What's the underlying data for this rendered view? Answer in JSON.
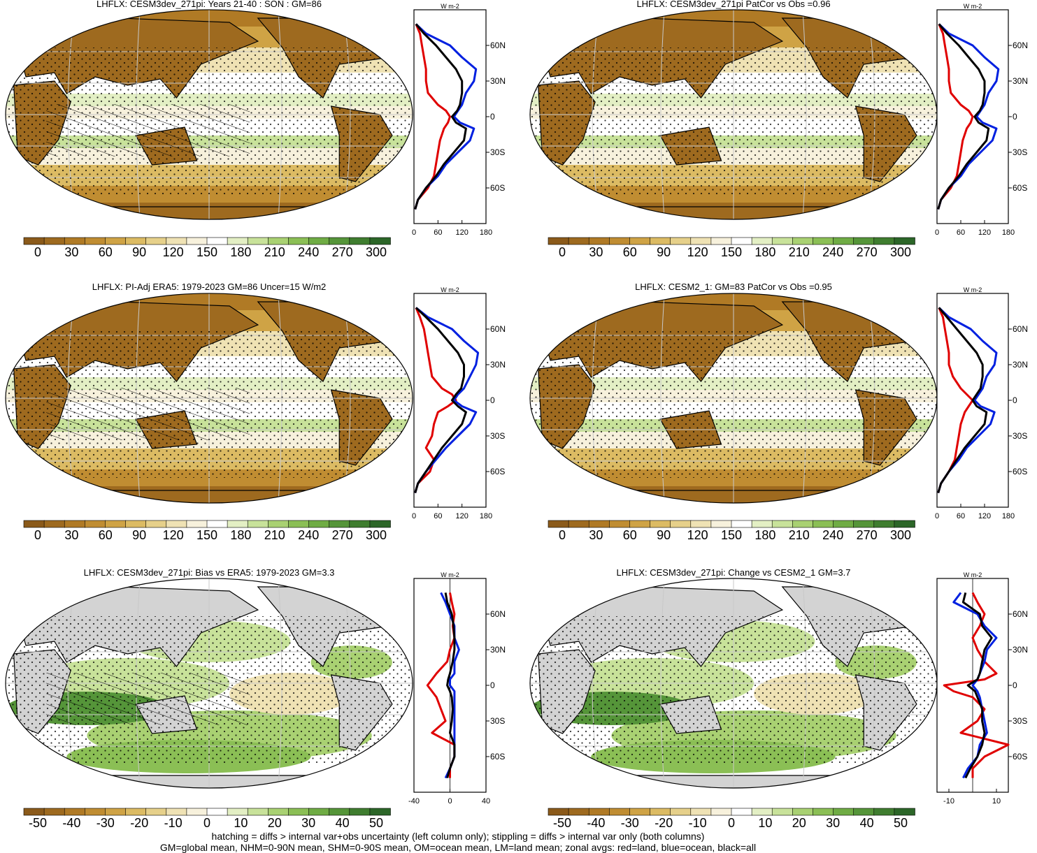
{
  "chart_data": [
    {
      "type": "heatmap",
      "title": "LHFLX: CESM3dev_271pi: Years 21-40 : SON : GM=86",
      "colorbar_ticks": [
        "0",
        "30",
        "60",
        "90",
        "120",
        "150",
        "180",
        "210",
        "240",
        "270",
        "300"
      ],
      "overlay": "hatching + stippling"
    },
    {
      "type": "line",
      "xlabel": "",
      "units": "W m-2",
      "xticks": [
        "0",
        "60",
        "120",
        "180"
      ],
      "xlim": [
        0,
        180
      ],
      "yticks": [
        "60N",
        "30N",
        "0",
        "30S",
        "60S"
      ],
      "ylim": [
        -90,
        90
      ],
      "series": [
        {
          "color": "#e00000",
          "lat": [
            78,
            70,
            60,
            50,
            40,
            30,
            20,
            10,
            5,
            0,
            -5,
            -10,
            -20,
            -30,
            -40,
            -50,
            -60,
            -70,
            -78
          ],
          "values": [
            5,
            15,
            20,
            25,
            30,
            30,
            35,
            60,
            80,
            90,
            85,
            75,
            65,
            60,
            55,
            50,
            35,
            10,
            3
          ]
        },
        {
          "color": "#0020e0",
          "lat": [
            78,
            70,
            60,
            50,
            40,
            30,
            20,
            10,
            5,
            0,
            -5,
            -10,
            -20,
            -30,
            -40,
            -50,
            -60,
            -70,
            -78
          ],
          "values": [
            5,
            30,
            90,
            120,
            155,
            150,
            130,
            120,
            110,
            100,
            115,
            150,
            140,
            110,
            80,
            60,
            30,
            10,
            3
          ]
        },
        {
          "color": "#000000",
          "lat": [
            78,
            70,
            60,
            50,
            40,
            30,
            20,
            10,
            5,
            0,
            -5,
            -10,
            -20,
            -30,
            -40,
            -50,
            -60,
            -70,
            -78
          ],
          "values": [
            5,
            25,
            55,
            80,
            105,
            120,
            120,
            115,
            108,
            95,
            105,
            130,
            125,
            100,
            75,
            55,
            30,
            10,
            3
          ]
        }
      ]
    },
    {
      "type": "heatmap",
      "title": "LHFLX: CESM3dev_271pi PatCor vs Obs =0.96",
      "colorbar_ticks": [
        "0",
        "30",
        "60",
        "90",
        "120",
        "150",
        "180",
        "210",
        "240",
        "270",
        "300"
      ],
      "overlay": "stippling"
    },
    {
      "type": "line",
      "xlabel": "",
      "units": "W m-2",
      "xticks": [
        "0",
        "60",
        "120",
        "180"
      ],
      "xlim": [
        0,
        180
      ],
      "yticks": [
        "60N",
        "30N",
        "0",
        "30S",
        "60S"
      ],
      "ylim": [
        -90,
        90
      ],
      "series": [
        {
          "color": "#e00000",
          "lat": [
            78,
            70,
            60,
            50,
            40,
            30,
            20,
            10,
            5,
            0,
            -5,
            -10,
            -20,
            -30,
            -40,
            -50,
            -60,
            -70,
            -78
          ],
          "values": [
            5,
            15,
            20,
            25,
            30,
            30,
            35,
            60,
            80,
            90,
            85,
            75,
            65,
            60,
            55,
            50,
            35,
            10,
            3
          ]
        },
        {
          "color": "#0020e0",
          "lat": [
            78,
            70,
            60,
            50,
            40,
            30,
            20,
            10,
            5,
            0,
            -5,
            -10,
            -20,
            -30,
            -40,
            -50,
            -60,
            -70,
            -78
          ],
          "values": [
            5,
            30,
            90,
            120,
            155,
            150,
            130,
            120,
            110,
            100,
            115,
            150,
            140,
            110,
            80,
            60,
            30,
            10,
            3
          ]
        },
        {
          "color": "#000000",
          "lat": [
            78,
            70,
            60,
            50,
            40,
            30,
            20,
            10,
            5,
            0,
            -5,
            -10,
            -20,
            -30,
            -40,
            -50,
            -60,
            -70,
            -78
          ],
          "values": [
            5,
            25,
            55,
            80,
            105,
            120,
            120,
            115,
            108,
            95,
            105,
            130,
            125,
            100,
            75,
            55,
            30,
            10,
            3
          ]
        }
      ]
    },
    {
      "type": "heatmap",
      "title": "LHFLX: PI-Adj ERA5: 1979-2023 GM=86 Uncer=15 W/m2",
      "colorbar_ticks": [
        "0",
        "30",
        "60",
        "90",
        "120",
        "150",
        "180",
        "210",
        "240",
        "270",
        "300"
      ],
      "overlay": "hatching + stippling"
    },
    {
      "type": "line",
      "xlabel": "",
      "units": "W m-2",
      "xticks": [
        "0",
        "60",
        "120",
        "180"
      ],
      "xlim": [
        0,
        180
      ],
      "yticks": [
        "60N",
        "30N",
        "0",
        "30S",
        "60S"
      ],
      "ylim": [
        -90,
        90
      ],
      "series": [
        {
          "color": "#e00000",
          "lat": [
            78,
            70,
            60,
            50,
            40,
            30,
            20,
            10,
            5,
            0,
            -5,
            -10,
            -20,
            -30,
            -40,
            -50,
            -60,
            -70,
            -78
          ],
          "values": [
            5,
            15,
            25,
            30,
            35,
            40,
            45,
            70,
            95,
            105,
            85,
            60,
            50,
            45,
            30,
            50,
            40,
            10,
            3
          ]
        },
        {
          "color": "#0020e0",
          "lat": [
            78,
            70,
            60,
            50,
            40,
            30,
            20,
            10,
            5,
            0,
            -5,
            -10,
            -20,
            -30,
            -40,
            -50,
            -60,
            -70,
            -78
          ],
          "values": [
            5,
            35,
            95,
            125,
            160,
            155,
            140,
            125,
            110,
            100,
            120,
            155,
            140,
            110,
            80,
            55,
            30,
            10,
            3
          ]
        },
        {
          "color": "#000000",
          "lat": [
            78,
            70,
            60,
            50,
            40,
            30,
            20,
            10,
            5,
            0,
            -5,
            -10,
            -20,
            -30,
            -40,
            -50,
            -60,
            -70,
            -78
          ],
          "values": [
            5,
            30,
            60,
            85,
            110,
            125,
            125,
            118,
            105,
            95,
            110,
            130,
            120,
            95,
            70,
            50,
            30,
            10,
            3
          ]
        }
      ]
    },
    {
      "type": "heatmap",
      "title": "LHFLX: CESM2_1: GM=83 PatCor vs Obs =0.95",
      "colorbar_ticks": [
        "0",
        "30",
        "60",
        "90",
        "120",
        "150",
        "180",
        "210",
        "240",
        "270",
        "300"
      ],
      "overlay": "stippling"
    },
    {
      "type": "line",
      "xlabel": "",
      "units": "W m-2",
      "xticks": [
        "0",
        "60",
        "120",
        "180"
      ],
      "xlim": [
        0,
        180
      ],
      "yticks": [
        "60N",
        "30N",
        "0",
        "30S",
        "60S"
      ],
      "ylim": [
        -90,
        90
      ],
      "series": [
        {
          "color": "#e00000",
          "lat": [
            78,
            70,
            60,
            50,
            40,
            30,
            20,
            10,
            5,
            0,
            -5,
            -10,
            -20,
            -30,
            -40,
            -50,
            -60,
            -70,
            -78
          ],
          "values": [
            5,
            15,
            20,
            25,
            30,
            30,
            40,
            60,
            75,
            90,
            80,
            70,
            60,
            55,
            50,
            45,
            30,
            10,
            3
          ]
        },
        {
          "color": "#0020e0",
          "lat": [
            78,
            70,
            60,
            50,
            40,
            30,
            20,
            10,
            5,
            0,
            -5,
            -10,
            -20,
            -30,
            -40,
            -50,
            -60,
            -70,
            -78
          ],
          "values": [
            5,
            30,
            85,
            115,
            150,
            145,
            125,
            115,
            105,
            95,
            110,
            145,
            135,
            105,
            75,
            55,
            30,
            10,
            3
          ]
        },
        {
          "color": "#000000",
          "lat": [
            78,
            70,
            60,
            50,
            40,
            30,
            20,
            10,
            5,
            0,
            -5,
            -10,
            -20,
            -30,
            -40,
            -50,
            -60,
            -70,
            -78
          ],
          "values": [
            5,
            25,
            50,
            75,
            100,
            115,
            115,
            110,
            100,
            90,
            100,
            125,
            120,
            95,
            70,
            50,
            30,
            10,
            3
          ]
        }
      ]
    },
    {
      "type": "heatmap",
      "title": "LHFLX: CESM3dev_271pi: Bias vs ERA5: 1979-2023  GM=3.3",
      "colorbar_ticks": [
        "-50",
        "-40",
        "-30",
        "-20",
        "-10",
        "0",
        "10",
        "20",
        "30",
        "40",
        "50"
      ],
      "overlay": "hatching + stippling"
    },
    {
      "type": "line",
      "xlabel": "",
      "units": "W m-2",
      "xticks": [
        "-40",
        "0",
        "40"
      ],
      "xlim": [
        -40,
        40
      ],
      "yticks": [
        "60N",
        "30N",
        "0",
        "30S",
        "60S"
      ],
      "ylim": [
        -90,
        90
      ],
      "series": [
        {
          "color": "#e00000",
          "lat": [
            78,
            70,
            60,
            50,
            40,
            30,
            20,
            10,
            5,
            0,
            -5,
            -10,
            -20,
            -30,
            -40,
            -50,
            -60,
            -70,
            -78
          ],
          "values": [
            0,
            2,
            5,
            3,
            5,
            0,
            -3,
            -15,
            -20,
            -25,
            -20,
            -15,
            -10,
            -5,
            -20,
            5,
            5,
            0,
            0
          ]
        },
        {
          "color": "#0020e0",
          "lat": [
            78,
            70,
            60,
            50,
            40,
            30,
            20,
            10,
            5,
            0,
            -5,
            -10,
            -20,
            -30,
            -40,
            -50,
            -60,
            -70,
            -78
          ],
          "values": [
            -10,
            -5,
            0,
            5,
            5,
            10,
            5,
            5,
            0,
            0,
            5,
            5,
            5,
            5,
            5,
            5,
            5,
            0,
            -5
          ]
        },
        {
          "color": "#000000",
          "lat": [
            78,
            70,
            60,
            50,
            40,
            30,
            20,
            10,
            5,
            0,
            -5,
            -10,
            -20,
            -30,
            -40,
            -50,
            -60,
            -70,
            -78
          ],
          "values": [
            -5,
            -3,
            2,
            4,
            5,
            5,
            3,
            0,
            -2,
            -3,
            0,
            2,
            3,
            2,
            0,
            5,
            5,
            0,
            -3
          ]
        }
      ]
    },
    {
      "type": "heatmap",
      "title": "LHFLX: CESM3dev_271pi: Change vs CESM2_1 GM=3.7",
      "colorbar_ticks": [
        "-50",
        "-40",
        "-30",
        "-20",
        "-10",
        "0",
        "10",
        "20",
        "30",
        "40",
        "50"
      ],
      "overlay": "stippling"
    },
    {
      "type": "line",
      "xlabel": "",
      "units": "W m-2",
      "xticks": [
        "-10",
        "10"
      ],
      "xlim": [
        -15,
        15
      ],
      "yticks": [
        "60N",
        "30N",
        "0",
        "30S",
        "60S"
      ],
      "ylim": [
        -90,
        90
      ],
      "series": [
        {
          "color": "#e00000",
          "lat": [
            78,
            70,
            60,
            50,
            40,
            30,
            20,
            10,
            5,
            0,
            -5,
            -10,
            -20,
            -30,
            -40,
            -50,
            -60,
            -70,
            -78
          ],
          "values": [
            0,
            2,
            5,
            3,
            0,
            2,
            5,
            10,
            5,
            -12,
            -8,
            0,
            5,
            2,
            -5,
            15,
            5,
            0,
            0
          ]
        },
        {
          "color": "#0020e0",
          "lat": [
            78,
            70,
            60,
            50,
            40,
            30,
            20,
            10,
            5,
            0,
            -5,
            -10,
            -20,
            -30,
            -40,
            -50,
            -60,
            -70,
            -78
          ],
          "values": [
            -5,
            -8,
            2,
            5,
            10,
            6,
            5,
            3,
            2,
            0,
            2,
            3,
            4,
            5,
            6,
            3,
            2,
            -2,
            -4
          ]
        },
        {
          "color": "#000000",
          "lat": [
            78,
            70,
            60,
            50,
            40,
            30,
            20,
            10,
            5,
            0,
            -5,
            -10,
            -20,
            -30,
            -40,
            -50,
            -60,
            -70,
            -78
          ],
          "values": [
            -3,
            -4,
            3,
            4,
            8,
            5,
            4,
            3,
            2,
            -2,
            1,
            2,
            4,
            4,
            5,
            4,
            2,
            -1,
            -3
          ]
        }
      ]
    }
  ],
  "footer_lines": [
    "hatching = diffs > internal var+obs uncertainty (left column only); stippling = diffs > internal var only (both columns)",
    "GM=global mean, NHM=0-90N mean, SHM=0-90S mean, OM=ocean mean, LM=land mean; zonal avgs: red=land, blue=ocean, black=all"
  ],
  "colors": {
    "abs_scale": [
      "#8b5a1a",
      "#9e6a1f",
      "#b07a25",
      "#c08d32",
      "#cfa345",
      "#dcbb63",
      "#e6d08a",
      "#efe2b4",
      "#f7f1dc",
      "#ffffff",
      "#e3efc4",
      "#c8e29a",
      "#a9d172",
      "#8bbf55",
      "#6fac44",
      "#559539",
      "#3f7d2f",
      "#2c6628"
    ],
    "land_mask": "#d3d3d3"
  }
}
